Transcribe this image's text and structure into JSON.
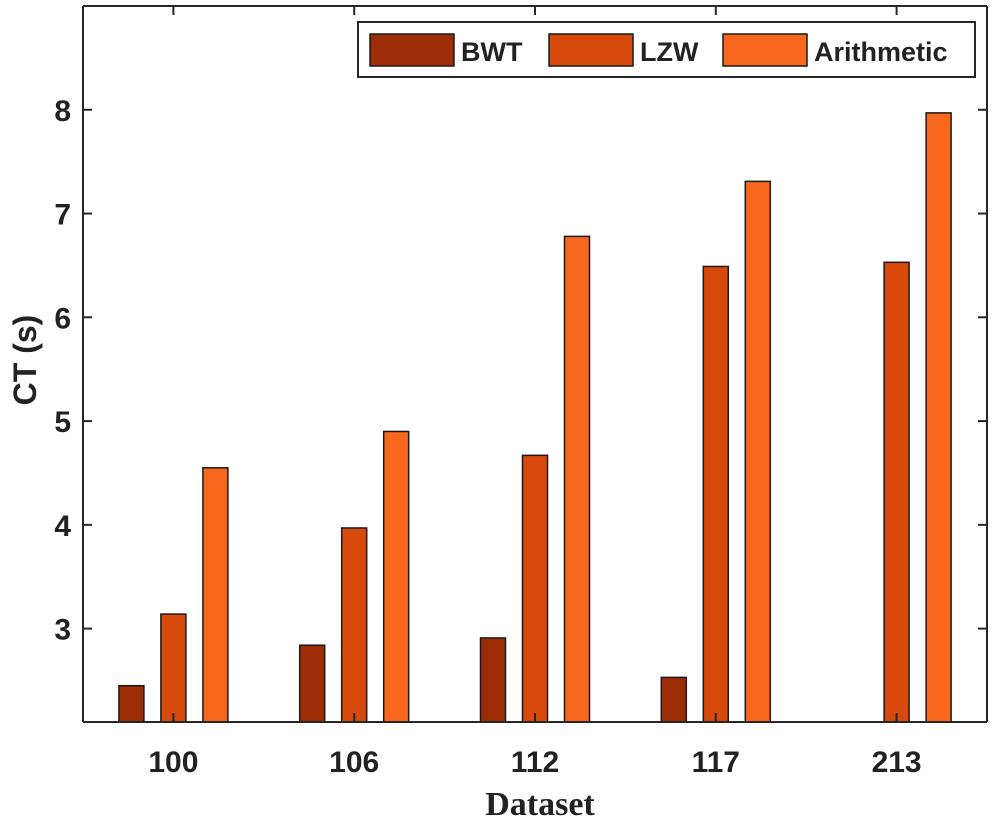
{
  "chart_data": {
    "type": "bar",
    "title": "",
    "xlabel": "Dataset",
    "ylabel": "CT (s)",
    "categories": [
      "100",
      "106",
      "112",
      "117",
      "213"
    ],
    "series": [
      {
        "name": "BWT",
        "color": "#9c2d07",
        "values": [
          2.45,
          2.84,
          2.91,
          2.53,
          null
        ]
      },
      {
        "name": "LZW",
        "color": "#d84a0c",
        "values": [
          3.14,
          3.97,
          4.67,
          6.49,
          6.53
        ]
      },
      {
        "name": "Arithmetic",
        "color": "#f7671d",
        "values": [
          4.55,
          4.9,
          6.78,
          7.31,
          7.97
        ]
      }
    ],
    "ylim": [
      2.1,
      9.0
    ],
    "yticks": [
      3,
      4,
      5,
      6,
      7,
      8
    ],
    "grid": false,
    "legend_position": "top-right"
  }
}
